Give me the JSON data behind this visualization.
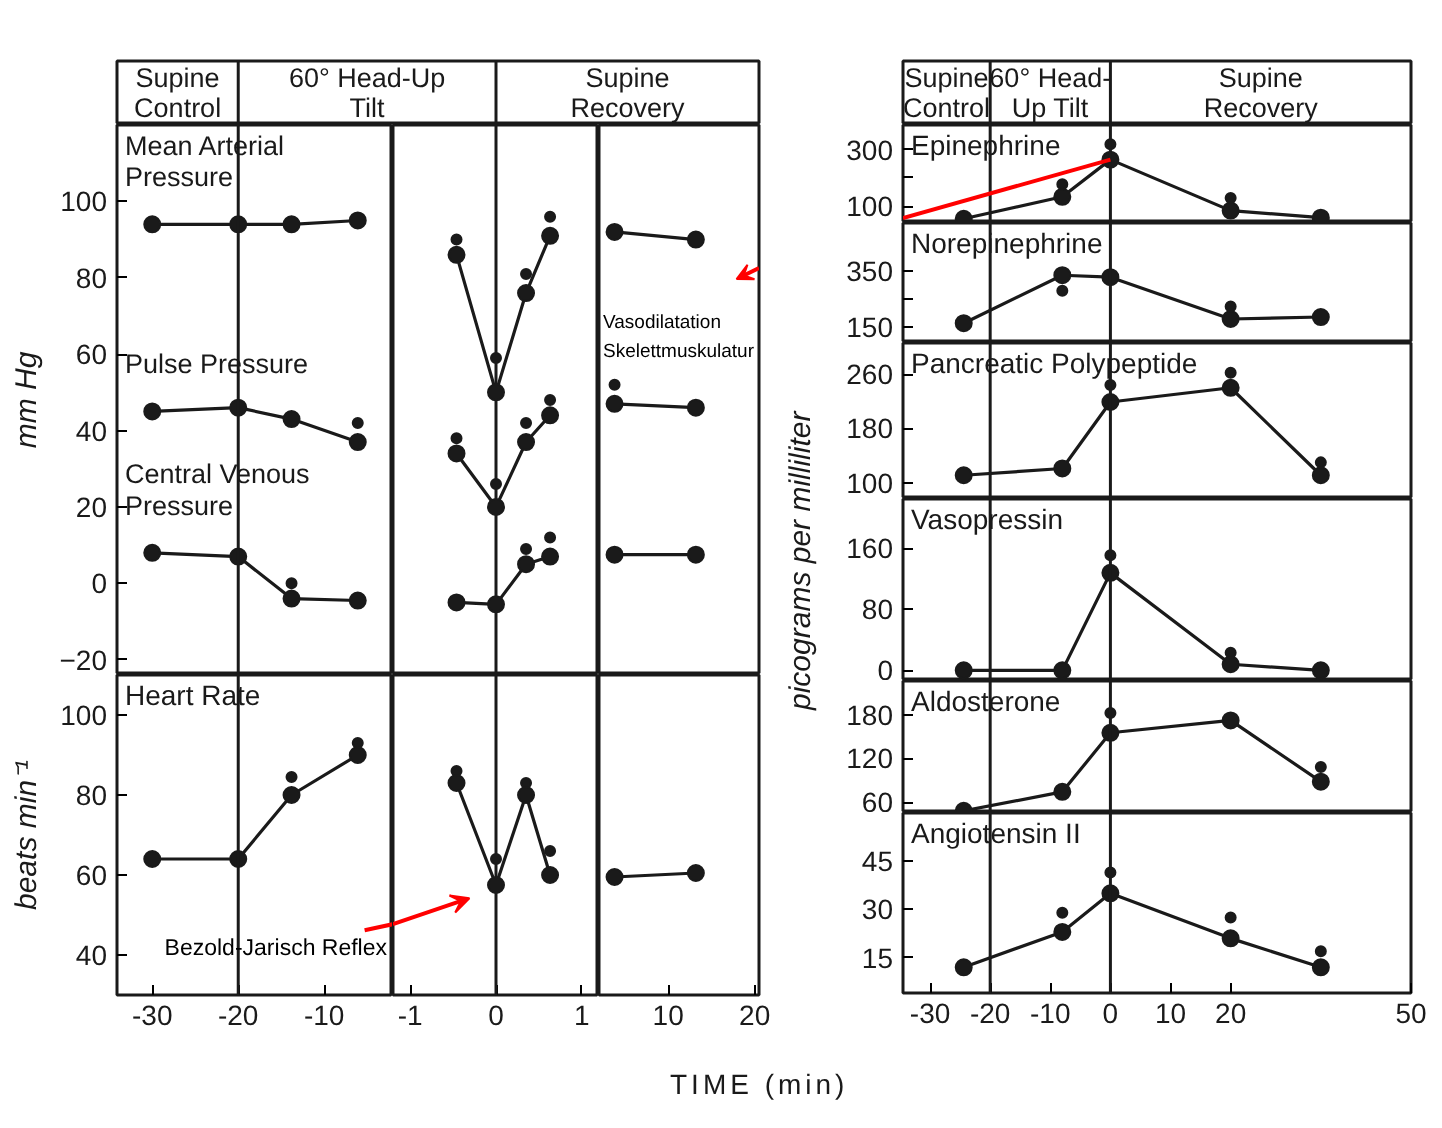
{
  "chart_data": [
    {
      "type": "other",
      "annotations": [
        "Supine\nControl",
        "60° Head-Up\nTilt",
        "Supine\nRecovery"
      ]
    },
    {
      "type": "line",
      "ylabel": "mm Hg",
      "x": [
        -30,
        -20,
        -13.8,
        -6.1
      ],
      "xlim": [
        -34.1,
        -2
      ],
      "ylim": [
        -24,
        120
      ],
      "yticks": [
        -20,
        0,
        20,
        40,
        60,
        80,
        100
      ],
      "xticks": [
        -30,
        -20,
        -10
      ],
      "tick_labels": "y",
      "marker": "circle",
      "line_style": "solid",
      "ref_lines": [
        {
          "axis": "x",
          "value": -20
        }
      ],
      "series": [
        {
          "name": "Mean Arterial Pressure",
          "color": "#1a1a1a",
          "values": [
            94,
            94,
            94,
            95
          ]
        },
        {
          "name": "Pulse Pressure",
          "color": "#1a1a1a",
          "values": [
            45,
            46,
            43,
            37
          ]
        },
        {
          "name": "Central Venous Pressure",
          "color": "#1a1a1a",
          "values": [
            8,
            7,
            -4,
            -4.5
          ]
        },
        {
          "type": "scatter",
          "color": "#1a1a1a",
          "x": [
            -6.1,
            -13.8
          ],
          "values": [
            42,
            0
          ]
        }
      ]
    },
    {
      "type": "line",
      "x": [
        -0.46,
        0,
        0.35,
        0.63
      ],
      "xlim": [
        -1.2,
        1.2
      ],
      "ylim": [
        -24,
        120
      ],
      "yticks": [
        -20,
        0,
        20,
        40,
        60,
        80,
        100
      ],
      "xticks": [
        -1,
        0,
        1
      ],
      "tick_labels": false,
      "marker": "circle",
      "line_style": "solid",
      "ref_lines": [
        {
          "axis": "x",
          "value": 0
        }
      ],
      "series": [
        {
          "color": "#1a1a1a",
          "values": [
            86,
            50,
            76,
            91
          ]
        },
        {
          "color": "#1a1a1a",
          "values": [
            34,
            20,
            37,
            44
          ]
        },
        {
          "color": "#1a1a1a",
          "values": [
            -5,
            -5.5,
            5,
            7
          ]
        },
        {
          "type": "scatter",
          "color": "#1a1a1a",
          "x": [
            -0.46,
            0,
            0.35,
            0.63,
            -0.46,
            0,
            0.35,
            0.63,
            0.35,
            0.63
          ],
          "values": [
            90,
            59,
            81,
            96,
            38,
            26,
            42,
            48,
            9,
            12
          ]
        }
      ]
    },
    {
      "type": "line",
      "x": [
        3.8,
        13.2
      ],
      "xlim": [
        2,
        20.5
      ],
      "ylim": [
        -24,
        120
      ],
      "yticks": [
        -20,
        0,
        20,
        40,
        60,
        80,
        100
      ],
      "xticks": [
        10,
        20
      ],
      "tick_labels": false,
      "marker": "circle",
      "line_style": "solid",
      "annotations": [
        "Vasodilatation\nSkelettmuskulatur"
      ],
      "series": [
        {
          "color": "#1a1a1a",
          "values": [
            92,
            90
          ]
        },
        {
          "color": "#1a1a1a",
          "values": [
            47,
            46
          ]
        },
        {
          "color": "#1a1a1a",
          "values": [
            7.5,
            7.5
          ]
        },
        {
          "type": "scatter",
          "color": "#1a1a1a",
          "x": [
            3.8
          ],
          "values": [
            52
          ]
        }
      ]
    },
    {
      "type": "line",
      "ylabel": "beats min⁻¹",
      "x": [
        -30,
        -20,
        -13.8,
        -6.1
      ],
      "xlim": [
        -34.1,
        -2
      ],
      "ylim": [
        30,
        110
      ],
      "yticks": [
        40,
        60,
        80,
        100
      ],
      "xticks": [
        -30,
        -20,
        -10
      ],
      "marker": "circle",
      "line_style": "solid",
      "ref_lines": [
        {
          "axis": "x",
          "value": -20
        }
      ],
      "annotations": [
        "Bezold-Jarisch Reflex"
      ],
      "series": [
        {
          "name": "Heart Rate",
          "color": "#1a1a1a",
          "values": [
            64,
            64,
            80,
            90
          ]
        },
        {
          "type": "scatter",
          "color": "#1a1a1a",
          "x": [
            -13.8,
            -6.1
          ],
          "values": [
            84.5,
            93
          ]
        }
      ]
    },
    {
      "type": "line",
      "xlabel": "TIME (min)",
      "x": [
        -0.46,
        0,
        0.35,
        0.63
      ],
      "xlim": [
        -1.2,
        1.2
      ],
      "ylim": [
        30,
        110
      ],
      "yticks": [
        40,
        60,
        80,
        100
      ],
      "xticks": [
        -1,
        0,
        1
      ],
      "tick_labels": "x",
      "marker": "circle",
      "line_style": "solid",
      "ref_lines": [
        {
          "axis": "x",
          "value": 0
        }
      ],
      "series": [
        {
          "color": "#1a1a1a",
          "values": [
            83,
            57.5,
            80,
            60
          ]
        },
        {
          "type": "scatter",
          "color": "#1a1a1a",
          "x": [
            -0.46,
            0,
            0.35,
            0.63
          ],
          "values": [
            86,
            64,
            83,
            66
          ]
        }
      ]
    },
    {
      "type": "line",
      "x": [
        3.8,
        13.2
      ],
      "xlim": [
        2,
        20.5
      ],
      "ylim": [
        30,
        110
      ],
      "yticks": [
        40,
        60,
        80,
        100
      ],
      "xticks": [
        10,
        20
      ],
      "tick_labels": "x",
      "marker": "circle",
      "line_style": "solid",
      "series": [
        {
          "color": "#1a1a1a",
          "values": [
            59.5,
            60.5
          ]
        }
      ]
    },
    {
      "type": "other",
      "annotations": [
        "Supine\nControl",
        "60° Head-\nUp Tilt",
        "Supine\nRecovery"
      ]
    },
    {
      "type": "line",
      "x": [
        -24.4,
        -8,
        0,
        20,
        35
      ],
      "xlim": [
        -34.5,
        50
      ],
      "ylim": [
        40,
        388
      ],
      "yticks": [
        100,
        {
          "value": 200,
          "label": null
        },
        300
      ],
      "xticks": [
        -30,
        -20,
        -10,
        0,
        10,
        20,
        50
      ],
      "tick_labels": "y",
      "marker": "circle",
      "line_style": "solid",
      "ref_lines": [
        {
          "axis": "x",
          "value": -20
        },
        {
          "axis": "x",
          "value": 0
        }
      ],
      "series": [
        {
          "name": "Epinephrine",
          "color": "#1a1a1a",
          "values": [
            55,
            133,
            265,
            84,
            59
          ]
        },
        {
          "type": "scatter",
          "color": "#1a1a1a",
          "x": [
            -8,
            0,
            20
          ],
          "values": [
            178,
            320,
            129
          ]
        }
      ]
    },
    {
      "type": "line",
      "x": [
        -24.4,
        -8,
        0,
        20,
        35
      ],
      "xlim": [
        -34.5,
        50
      ],
      "ylim": [
        95,
        520
      ],
      "yticks": [
        150,
        {
          "value": 250,
          "label": null
        },
        350
      ],
      "xticks": [
        -30,
        -20,
        -10,
        0,
        10,
        20,
        50
      ],
      "tick_labels": "y",
      "marker": "circle",
      "line_style": "solid",
      "ref_lines": [
        {
          "axis": "x",
          "value": -20
        },
        {
          "axis": "x",
          "value": 0
        }
      ],
      "series": [
        {
          "name": "Norepinephrine",
          "color": "#1a1a1a",
          "values": [
            165,
            335,
            328,
            180,
            187
          ]
        },
        {
          "type": "scatter",
          "color": "#1a1a1a",
          "x": [
            -8,
            20
          ],
          "values": [
            280,
            224
          ]
        }
      ]
    },
    {
      "type": "line",
      "x": [
        -24.4,
        -8,
        0,
        20,
        35
      ],
      "xlim": [
        -34.5,
        50
      ],
      "ylim": [
        76,
        306
      ],
      "yticks": [
        100,
        180,
        260
      ],
      "xticks": [
        -30,
        -20,
        -10,
        0,
        10,
        20,
        50
      ],
      "tick_labels": "y",
      "marker": "circle",
      "line_style": "solid",
      "ref_lines": [
        {
          "axis": "x",
          "value": -20
        },
        {
          "axis": "x",
          "value": 0
        }
      ],
      "series": [
        {
          "name": "Pancreatic Polypeptide",
          "color": "#1a1a1a",
          "values": [
            111,
            121,
            219,
            240,
            111
          ]
        },
        {
          "type": "scatter",
          "color": "#1a1a1a",
          "x": [
            0,
            20,
            35
          ],
          "values": [
            244,
            262,
            130
          ]
        }
      ]
    },
    {
      "type": "line",
      "ylabel": "picograms per milliliter",
      "x": [
        -24.4,
        -8,
        0,
        20,
        35
      ],
      "xlim": [
        -34.5,
        50
      ],
      "ylim": [
        -14,
        225
      ],
      "yticks": [
        0,
        80,
        160
      ],
      "xticks": [
        -30,
        -20,
        -10,
        0,
        10,
        20,
        50
      ],
      "tick_labels": "y",
      "marker": "circle",
      "line_style": "solid",
      "ref_lines": [
        {
          "axis": "x",
          "value": -20
        },
        {
          "axis": "x",
          "value": 0
        }
      ],
      "series": [
        {
          "name": "Vasopressin",
          "color": "#1a1a1a",
          "values": [
            0,
            0,
            128,
            8,
            0
          ]
        },
        {
          "type": "scatter",
          "color": "#1a1a1a",
          "x": [
            0,
            20
          ],
          "values": [
            151,
            23
          ]
        }
      ]
    },
    {
      "type": "line",
      "x": [
        -24.4,
        -8,
        0,
        20,
        35
      ],
      "xlim": [
        -34.5,
        50
      ],
      "ylim": [
        45,
        226
      ],
      "yticks": [
        60,
        120,
        180
      ],
      "xticks": [
        -30,
        -20,
        -10,
        0,
        10,
        20,
        50
      ],
      "tick_labels": "y",
      "marker": "circle",
      "line_style": "solid",
      "ref_lines": [
        {
          "axis": "x",
          "value": -20
        },
        {
          "axis": "x",
          "value": 0
        }
      ],
      "series": [
        {
          "name": "Aldosterone",
          "color": "#1a1a1a",
          "values": [
            48,
            74,
            155,
            172,
            88
          ]
        },
        {
          "type": "scatter",
          "color": "#1a1a1a",
          "x": [
            0,
            35
          ],
          "values": [
            182,
            108
          ]
        }
      ]
    },
    {
      "type": "line",
      "x": [
        -24.4,
        -8,
        0,
        20,
        35
      ],
      "xlim": [
        -34.5,
        50
      ],
      "ylim": [
        4,
        60
      ],
      "yticks": [
        15,
        30,
        45
      ],
      "xticks": [
        -30,
        -20,
        -10,
        0,
        10,
        20,
        50
      ],
      "marker": "circle",
      "line_style": "solid",
      "ref_lines": [
        {
          "axis": "x",
          "value": -20
        },
        {
          "axis": "x",
          "value": 0
        }
      ],
      "series": [
        {
          "name": "Angiotensin II",
          "color": "#1a1a1a",
          "values": [
            12,
            23,
            35,
            21,
            12
          ]
        },
        {
          "type": "scatter",
          "color": "#1a1a1a",
          "x": [
            -8,
            0,
            20,
            35
          ],
          "values": [
            29,
            41.5,
            27.5,
            17
          ]
        }
      ]
    }
  ]
}
